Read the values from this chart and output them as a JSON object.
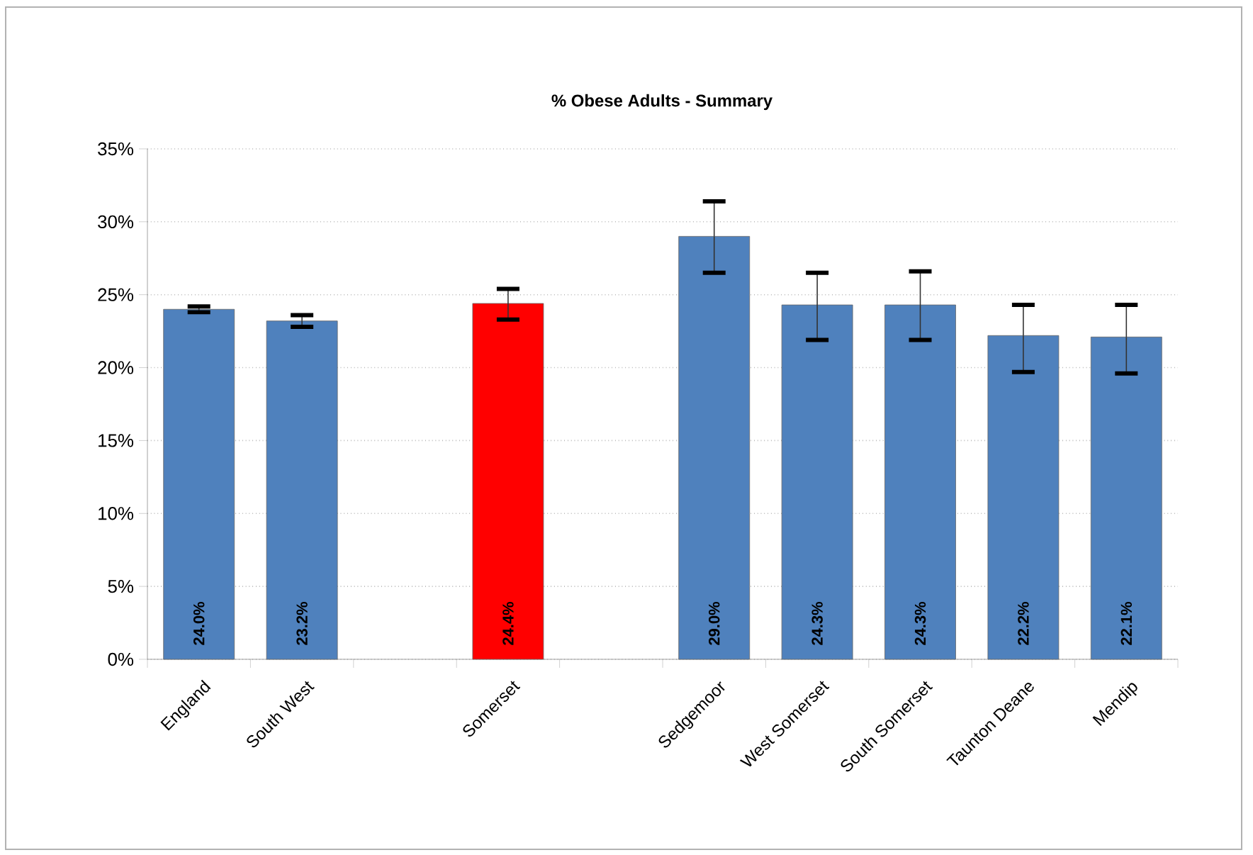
{
  "chart_data": {
    "type": "bar",
    "title": "% Obese Adults - Summary",
    "categories": [
      "England",
      "South West",
      null,
      "Somerset",
      null,
      "Sedgemoor",
      "West Somerset",
      "South Somerset",
      "Taunton Deane",
      "Mendip"
    ],
    "values": [
      24.0,
      23.2,
      null,
      24.4,
      null,
      29.0,
      24.3,
      24.3,
      22.2,
      22.1
    ],
    "value_labels": [
      "24.0%",
      "23.2%",
      null,
      "24.4%",
      null,
      "29.0%",
      "24.3%",
      "24.3%",
      "22.2%",
      "22.1%"
    ],
    "errors": [
      [
        23.8,
        24.2
      ],
      [
        22.8,
        23.6
      ],
      null,
      [
        23.3,
        25.4
      ],
      null,
      [
        26.5,
        31.4
      ],
      [
        21.9,
        26.5
      ],
      [
        21.9,
        26.6
      ],
      [
        19.7,
        24.3
      ],
      [
        19.6,
        24.3
      ]
    ],
    "colors": [
      "#4f81bd",
      "#4f81bd",
      null,
      "#ff0000",
      null,
      "#4f81bd",
      "#4f81bd",
      "#4f81bd",
      "#4f81bd",
      "#4f81bd"
    ],
    "ylim": [
      0,
      35
    ],
    "yticks": [
      {
        "value": 0,
        "label": "0%"
      },
      {
        "value": 5,
        "label": "5%"
      },
      {
        "value": 10,
        "label": "10%"
      },
      {
        "value": 15,
        "label": "15%"
      },
      {
        "value": 20,
        "label": "20%"
      },
      {
        "value": 25,
        "label": "25%"
      },
      {
        "value": 30,
        "label": "30%"
      },
      {
        "value": 35,
        "label": "35%"
      }
    ],
    "grid": "y"
  }
}
